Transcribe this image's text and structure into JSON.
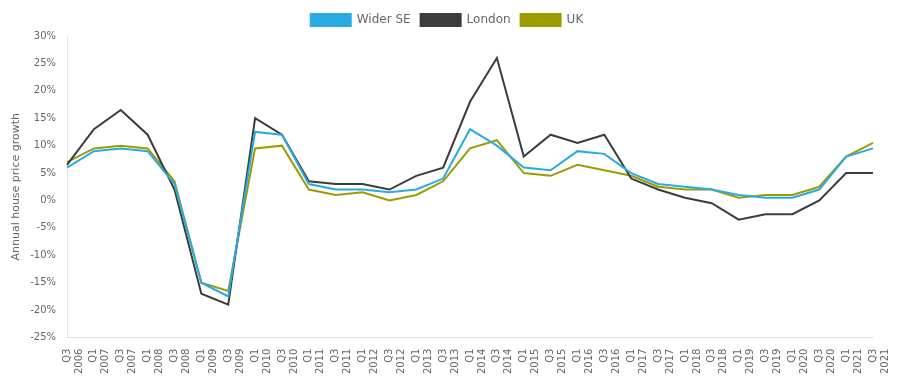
{
  "chart_data": {
    "type": "line",
    "ylabel": "Annual house price growth",
    "categories": [
      "Q3\n2006",
      "Q1\n2007",
      "Q3\n2007",
      "Q1\n2008",
      "Q3\n2008",
      "Q1\n2009",
      "Q3\n2009",
      "Q1\n2010",
      "Q3\n2010",
      "Q1\n2011",
      "Q3\n2011",
      "Q1\n2012",
      "Q3\n2012",
      "Q1\n2013",
      "Q3\n2013",
      "Q1\n2014",
      "Q3\n2014",
      "Q1\n2015",
      "Q3\n2015",
      "Q1\n2016",
      "Q3\n2016",
      "Q1\n2017",
      "Q3\n2017",
      "Q1\n2018",
      "Q3\n2018",
      "Q1\n2019",
      "Q3\n2019",
      "Q1\n2020",
      "Q3\n2020",
      "Q1\n2021",
      "Q3\n2021"
    ],
    "series": [
      {
        "name": "Wider SE",
        "color": "#29ABE2",
        "values": [
          6.0,
          9.0,
          9.5,
          9.0,
          3.0,
          -15.0,
          -17.5,
          12.5,
          12.0,
          3.0,
          2.0,
          2.0,
          1.5,
          2.0,
          4.0,
          13.0,
          10.0,
          6.0,
          5.5,
          9.0,
          8.5,
          5.0,
          3.0,
          2.5,
          2.0,
          1.0,
          0.5,
          0.5,
          2.0,
          8.0,
          9.5
        ]
      },
      {
        "name": "London",
        "color": "#3C3C3C",
        "values": [
          6.5,
          13.0,
          16.5,
          12.0,
          2.0,
          -17.0,
          -19.0,
          15.0,
          12.0,
          3.5,
          3.0,
          3.0,
          2.0,
          4.5,
          6.0,
          18.0,
          26.0,
          8.0,
          12.0,
          10.5,
          12.0,
          4.0,
          2.0,
          0.5,
          -0.5,
          -3.5,
          -2.5,
          -2.5,
          0.0,
          5.0,
          5.0
        ]
      },
      {
        "name": "UK",
        "color": "#9C9C00",
        "values": [
          7.0,
          9.5,
          10.0,
          9.5,
          3.5,
          -15.0,
          -16.5,
          9.5,
          10.0,
          2.0,
          1.0,
          1.5,
          0.0,
          1.0,
          3.5,
          9.5,
          11.0,
          5.0,
          4.5,
          6.5,
          5.5,
          4.5,
          2.5,
          2.0,
          2.0,
          0.5,
          1.0,
          1.0,
          2.5,
          8.0,
          10.5
        ]
      }
    ],
    "ylim": [
      -25,
      30
    ],
    "yticks": [
      {
        "value": -25,
        "label": "-25%"
      },
      {
        "value": -20,
        "label": "-20%"
      },
      {
        "value": -15,
        "label": "-15%"
      },
      {
        "value": -10,
        "label": "-10%"
      },
      {
        "value": -5,
        "label": "-5%"
      },
      {
        "value": 0,
        "label": "0%"
      },
      {
        "value": 5,
        "label": "5%"
      },
      {
        "value": 10,
        "label": "10%"
      },
      {
        "value": 15,
        "label": "15%"
      },
      {
        "value": 20,
        "label": "20%"
      },
      {
        "value": 25,
        "label": "25%"
      },
      {
        "value": 30,
        "label": "30%"
      }
    ],
    "grid": false,
    "legend": "top",
    "marker": "none"
  }
}
